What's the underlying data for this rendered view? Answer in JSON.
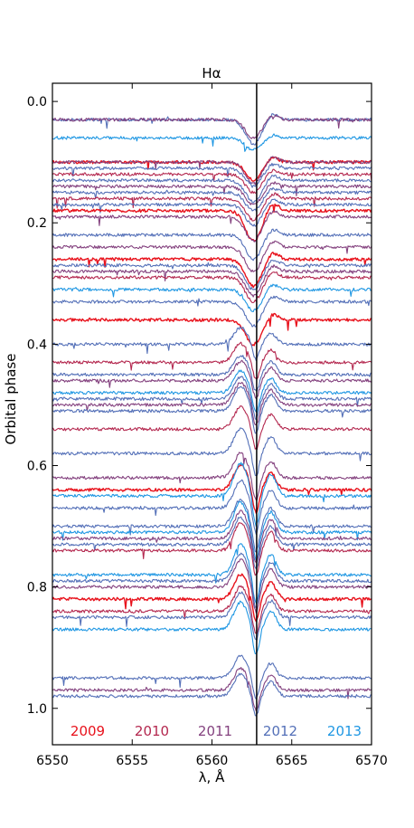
{
  "chart_data": {
    "type": "line",
    "title": "Hα",
    "xlabel": "λ, Å",
    "ylabel": "Orbital phase",
    "xlim": [
      6550,
      6570
    ],
    "ylim": [
      1.06,
      -0.03
    ],
    "x_ticks": [
      6550,
      6555,
      6560,
      6565,
      6570
    ],
    "y_ticks": [
      0.0,
      0.2,
      0.4,
      0.6,
      0.8,
      1.0
    ],
    "x_tick_labels": [
      "6550",
      "6555",
      "6560",
      "6565",
      "6570"
    ],
    "y_tick_labels": [
      "0.0",
      "0.2",
      "0.4",
      "0.6",
      "0.8",
      "1.0"
    ],
    "reference_line_x": 6562.8,
    "grid": false,
    "legend": [
      {
        "name": "2009",
        "color": "#e8121c"
      },
      {
        "name": "2010",
        "color": "#b4284f"
      },
      {
        "name": "2011",
        "color": "#84427f"
      },
      {
        "name": "2012",
        "color": "#5470b8"
      },
      {
        "name": "2013",
        "color": "#1f97e3"
      }
    ],
    "series": [
      {
        "year": "2012",
        "phase": 0.03,
        "profile": "absorption",
        "depth": 0.04
      },
      {
        "year": "2011",
        "phase": 0.03,
        "profile": "absorption",
        "depth": 0.03
      },
      {
        "year": "2013",
        "phase": 0.06,
        "profile": "absorption",
        "depth": 0.02
      },
      {
        "year": "2009",
        "phase": 0.1,
        "profile": "absorption",
        "depth": 0.03
      },
      {
        "year": "2011",
        "phase": 0.1,
        "profile": "absorption",
        "depth": 0.035
      },
      {
        "year": "2012",
        "phase": 0.11,
        "profile": "absorption",
        "depth": 0.03
      },
      {
        "year": "2010",
        "phase": 0.12,
        "profile": "absorption",
        "depth": 0.03
      },
      {
        "year": "2012",
        "phase": 0.13,
        "profile": "absorption",
        "depth": 0.035
      },
      {
        "year": "2011",
        "phase": 0.14,
        "profile": "absorption",
        "depth": 0.03
      },
      {
        "year": "2012",
        "phase": 0.15,
        "profile": "absorption",
        "depth": 0.03
      },
      {
        "year": "2010",
        "phase": 0.16,
        "profile": "absorption",
        "depth": 0.035
      },
      {
        "year": "2012",
        "phase": 0.17,
        "profile": "absorption",
        "depth": 0.035
      },
      {
        "year": "2009",
        "phase": 0.18,
        "profile": "absorption",
        "depth": 0.05
      },
      {
        "year": "2011",
        "phase": 0.19,
        "profile": "absorption",
        "depth": 0.04
      },
      {
        "year": "2012",
        "phase": 0.22,
        "profile": "absorption",
        "depth": 0.04
      },
      {
        "year": "2011",
        "phase": 0.24,
        "profile": "absorption",
        "depth": 0.04
      },
      {
        "year": "2009",
        "phase": 0.26,
        "profile": "absorption",
        "depth": 0.045
      },
      {
        "year": "2012",
        "phase": 0.27,
        "profile": "absorption",
        "depth": 0.04
      },
      {
        "year": "2011",
        "phase": 0.28,
        "profile": "absorption",
        "depth": 0.04
      },
      {
        "year": "2010",
        "phase": 0.29,
        "profile": "absorption",
        "depth": 0.04
      },
      {
        "year": "2013",
        "phase": 0.31,
        "profile": "absorption",
        "depth": 0.035
      },
      {
        "year": "2012",
        "phase": 0.33,
        "profile": "absorption",
        "depth": 0.04
      },
      {
        "year": "2009",
        "phase": 0.36,
        "profile": "absorption",
        "depth": 0.04
      },
      {
        "year": "2012",
        "phase": 0.4,
        "profile": "emission",
        "depth": 0.03
      },
      {
        "year": "2010",
        "phase": 0.43,
        "profile": "emission",
        "depth": 0.035
      },
      {
        "year": "2012",
        "phase": 0.45,
        "profile": "emission",
        "depth": 0.035
      },
      {
        "year": "2011",
        "phase": 0.46,
        "profile": "emission",
        "depth": 0.035
      },
      {
        "year": "2013",
        "phase": 0.48,
        "profile": "emission",
        "depth": 0.04
      },
      {
        "year": "2012",
        "phase": 0.49,
        "profile": "emission",
        "depth": 0.04
      },
      {
        "year": "2011",
        "phase": 0.5,
        "profile": "emission",
        "depth": 0.04
      },
      {
        "year": "2012",
        "phase": 0.51,
        "profile": "emission",
        "depth": 0.045
      },
      {
        "year": "2010",
        "phase": 0.54,
        "profile": "emission",
        "depth": 0.04
      },
      {
        "year": "2012",
        "phase": 0.58,
        "profile": "emission",
        "depth": 0.045
      },
      {
        "year": "2011",
        "phase": 0.62,
        "profile": "emission",
        "depth": 0.045
      },
      {
        "year": "2009",
        "phase": 0.64,
        "profile": "emission",
        "depth": 0.045
      },
      {
        "year": "2013",
        "phase": 0.65,
        "profile": "emission",
        "depth": 0.06
      },
      {
        "year": "2012",
        "phase": 0.67,
        "profile": "emission",
        "depth": 0.05
      },
      {
        "year": "2012",
        "phase": 0.7,
        "profile": "emission",
        "depth": 0.05
      },
      {
        "year": "2013",
        "phase": 0.71,
        "profile": "emission",
        "depth": 0.055
      },
      {
        "year": "2011",
        "phase": 0.72,
        "profile": "emission",
        "depth": 0.05
      },
      {
        "year": "2012",
        "phase": 0.73,
        "profile": "emission",
        "depth": 0.05
      },
      {
        "year": "2010",
        "phase": 0.74,
        "profile": "emission",
        "depth": 0.05
      },
      {
        "year": "2013",
        "phase": 0.78,
        "profile": "emission",
        "depth": 0.055
      },
      {
        "year": "2012",
        "phase": 0.79,
        "profile": "emission",
        "depth": 0.05
      },
      {
        "year": "2011",
        "phase": 0.8,
        "profile": "emission",
        "depth": 0.05
      },
      {
        "year": "2009",
        "phase": 0.82,
        "profile": "emission",
        "depth": 0.045
      },
      {
        "year": "2010",
        "phase": 0.84,
        "profile": "emission",
        "depth": 0.045
      },
      {
        "year": "2012",
        "phase": 0.85,
        "profile": "emission",
        "depth": 0.045
      },
      {
        "year": "2013",
        "phase": 0.87,
        "profile": "emission",
        "depth": 0.05
      },
      {
        "year": "2012",
        "phase": 0.95,
        "profile": "emission",
        "depth": 0.04
      },
      {
        "year": "2011",
        "phase": 0.97,
        "profile": "emission",
        "depth": 0.04
      },
      {
        "year": "2012",
        "phase": 0.98,
        "profile": "emission",
        "depth": 0.04
      }
    ]
  },
  "colors": {
    "axis": "#000000",
    "background": "#ffffff"
  }
}
